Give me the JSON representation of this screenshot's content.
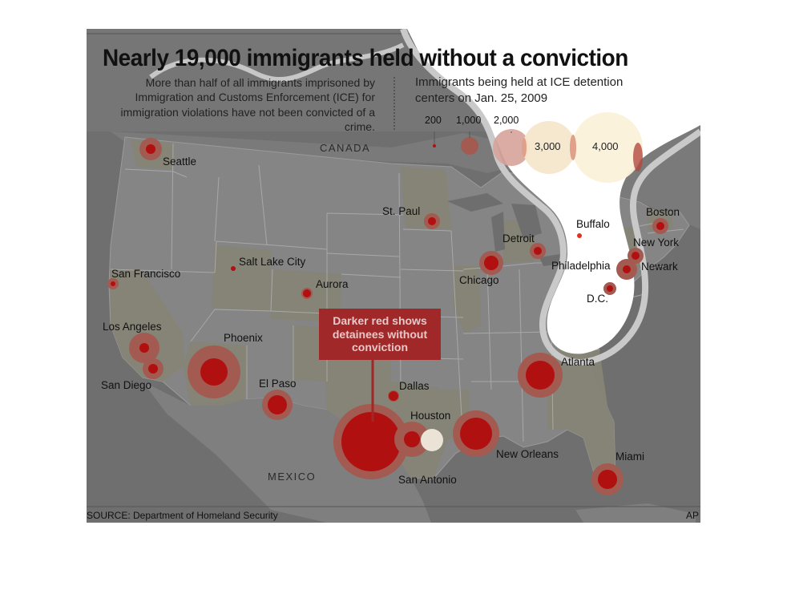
{
  "title": "Nearly 19,000 immigrants held without a conviction",
  "intro": "More than half of all immigrants imprisoned by Immigration and Customs Enforcement (ICE) for immigration violations have not been convicted of a crime.",
  "legend": {
    "title_line1": "Immigrants being held at ICE detention",
    "title_line2": "centers on Jan. 25, 2009",
    "sizes": [
      "200",
      "1,000",
      "2,000",
      "3,000",
      "4,000"
    ]
  },
  "callout": {
    "line1": "Darker red shows",
    "line2": "detainees without",
    "line3": "conviction"
  },
  "countries": {
    "canada": "CANADA",
    "mexico": "MEXICO"
  },
  "cities": {
    "seattle": "Seattle",
    "san_francisco": "San Francisco",
    "los_angeles": "Los Angeles",
    "san_diego": "San Diego",
    "phoenix": "Phoenix",
    "salt_lake_city": "Salt Lake City",
    "aurora": "Aurora",
    "el_paso": "El Paso",
    "st_paul": "St. Paul",
    "chicago": "Chicago",
    "detroit": "Detroit",
    "buffalo": "Buffalo",
    "boston": "Boston",
    "new_york": "New York",
    "newark": "Newark",
    "philadelphia": "Philadelphia",
    "dc": "D.C.",
    "atlanta": "Atlanta",
    "dallas": "Dallas",
    "houston": "Houston",
    "san_antonio": "San Antonio",
    "new_orleans": "New Orleans",
    "miami": "Miami"
  },
  "source": "SOURCE: Department of Homeland Security",
  "credit": "AP",
  "colors": {
    "overlay_gray": "#6e6e6e",
    "land": "#858585",
    "state_fill": "#858476",
    "bubble_outer": "#a35a50",
    "bubble_inner": "#b01010",
    "callout": "#a12828"
  }
}
